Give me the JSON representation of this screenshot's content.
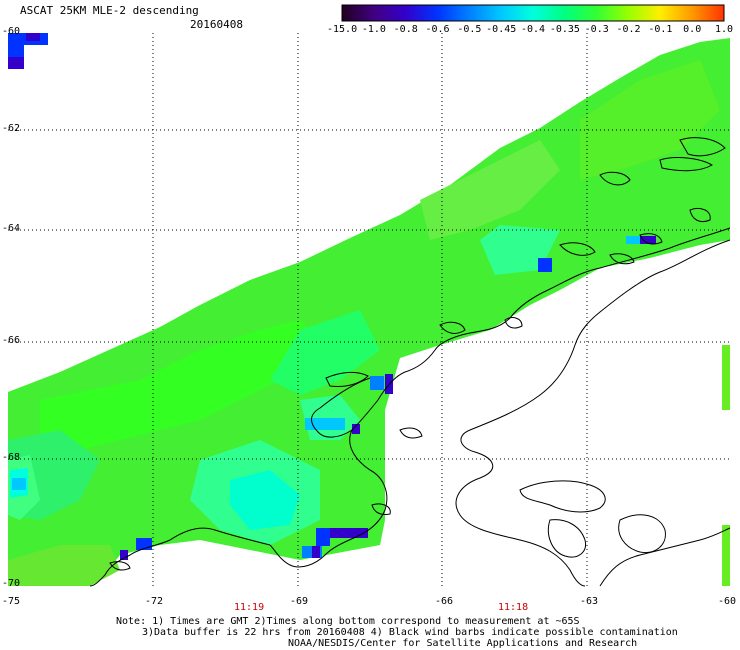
{
  "header": {
    "title": "ASCAT 25KM MLE-2 descending",
    "date": "20160408"
  },
  "colorbar": {
    "labels": [
      "-15.0",
      "-1.0",
      "-0.8",
      "-0.6",
      "-0.5",
      "-0.45",
      "-0.4",
      "-0.35",
      "-0.3",
      "-0.2",
      "-0.1",
      "0.0",
      "1.0"
    ],
    "stops": [
      "#200020",
      "#40007f",
      "#3300cc",
      "#0033ff",
      "#0080ff",
      "#00c8ff",
      "#00ffdd",
      "#00ff80",
      "#33ff33",
      "#99ff00",
      "#ffee00",
      "#ff9900",
      "#ff3300"
    ]
  },
  "axes": {
    "x_labels": [
      "-75",
      "-72",
      "-69",
      "-66",
      "-63",
      "-60"
    ],
    "y_labels": [
      "-60",
      "-62",
      "-64",
      "-66",
      "-68",
      "-70"
    ]
  },
  "times": [
    "11:19",
    "11:18"
  ],
  "notes": [
    "Note: 1) Times are GMT 2)Times along bottom correspond to measurement at ~65S",
    "3)Data buffer is 22 hrs from 20160408 4) Black wind barbs indicate possible contamination",
    "NOAA/NESDIS/Center for Satellite Applications and Research"
  ],
  "colors": {
    "swath_green": "#33ff33",
    "swath_light": "#55ee33",
    "cyan": "#00ffdd",
    "blue": "#0033ff",
    "dark": "#3300cc"
  }
}
